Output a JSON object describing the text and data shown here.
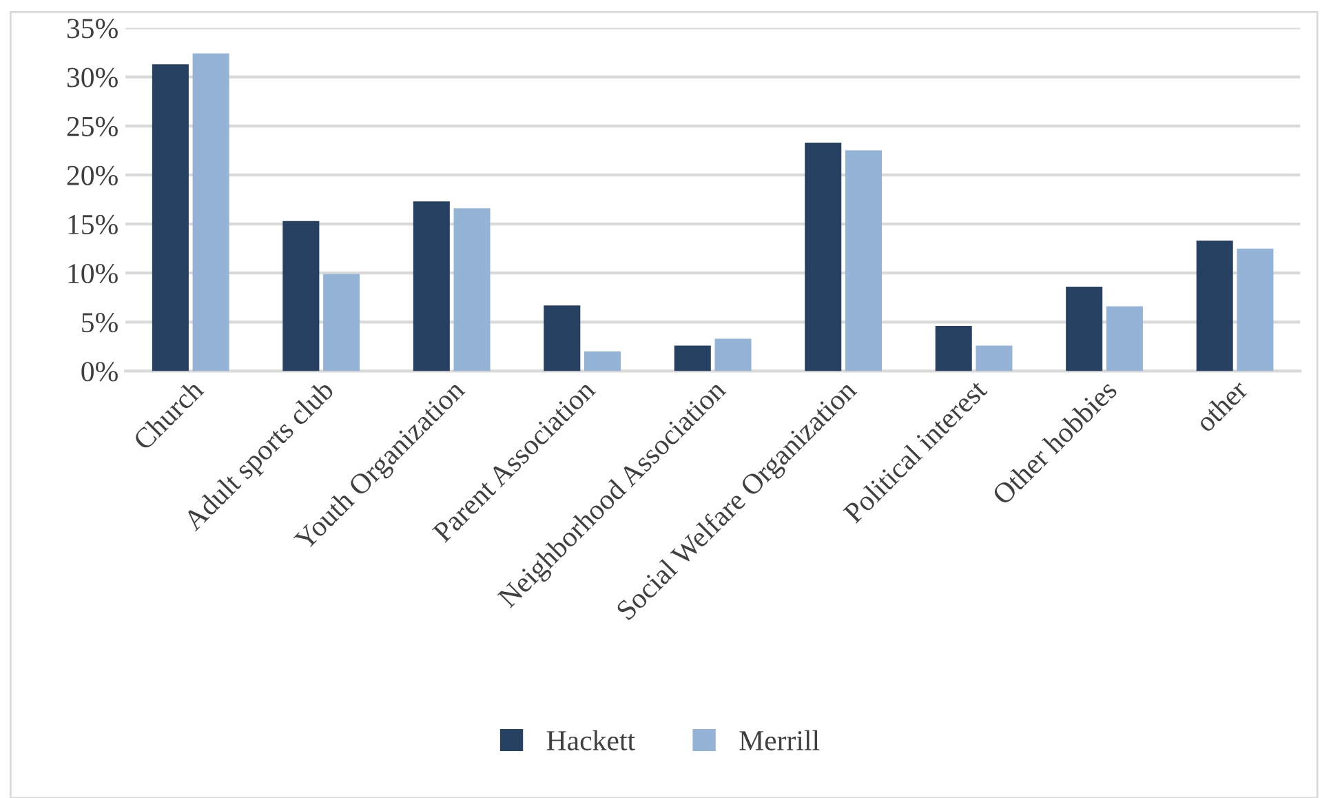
{
  "chart_data": {
    "type": "bar",
    "categories": [
      "Church",
      "Adult sports club",
      "Youth Organization",
      "Parent Association",
      "Neighborhood Association",
      "Social Welfare Organization",
      "Political interest",
      "Other hobbies",
      "other"
    ],
    "series": [
      {
        "name": "Hackett",
        "color": "#264061",
        "values": [
          31.3,
          15.3,
          17.3,
          6.7,
          2.6,
          23.3,
          4.6,
          8.6,
          13.3
        ]
      },
      {
        "name": "Merrill",
        "color": "#95b3d7",
        "values": [
          32.4,
          9.9,
          16.6,
          2.0,
          3.3,
          22.5,
          2.6,
          6.6,
          12.5
        ]
      }
    ],
    "ylim": [
      0,
      35
    ],
    "yticks": [
      {
        "value": 0,
        "label": "0%"
      },
      {
        "value": 5,
        "label": "5%"
      },
      {
        "value": 10,
        "label": "10%"
      },
      {
        "value": 15,
        "label": "15%"
      },
      {
        "value": 20,
        "label": "20%"
      },
      {
        "value": 25,
        "label": "25%"
      },
      {
        "value": 30,
        "label": "30%"
      },
      {
        "value": 35,
        "label": "35%"
      }
    ],
    "grid": "y",
    "legend": "bottom"
  }
}
